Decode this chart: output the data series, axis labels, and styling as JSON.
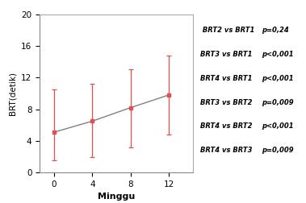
{
  "x": [
    0,
    4,
    8,
    12
  ],
  "y": [
    5.1,
    6.5,
    8.2,
    9.8
  ],
  "yerr_upper": [
    10.5,
    11.2,
    13.0,
    14.8
  ],
  "yerr_lower": [
    1.5,
    2.0,
    3.2,
    4.8
  ],
  "xlabel": "Minggu",
  "ylabel": "BRT(detik)",
  "xlim": [
    -1.5,
    14.5
  ],
  "ylim": [
    0,
    20
  ],
  "yticks": [
    0,
    4,
    8,
    12,
    16,
    20
  ],
  "xticks": [
    0,
    4,
    8,
    12
  ],
  "marker_color": "#e05050",
  "line_color": "#808080",
  "annotation_lines": [
    [
      " BRT2 vs BRT1",
      "p=0,24"
    ],
    [
      "BRT3 vs BRT1",
      "p<0,001"
    ],
    [
      "BRT4 vs BRT1",
      "p<0,001"
    ],
    [
      "BRT3 vs BRT2",
      "p=0,009"
    ],
    [
      "BRT4 vs BRT2",
      "p<0,001"
    ],
    [
      "BRT4 vs BRT3",
      "p=0,009"
    ]
  ]
}
